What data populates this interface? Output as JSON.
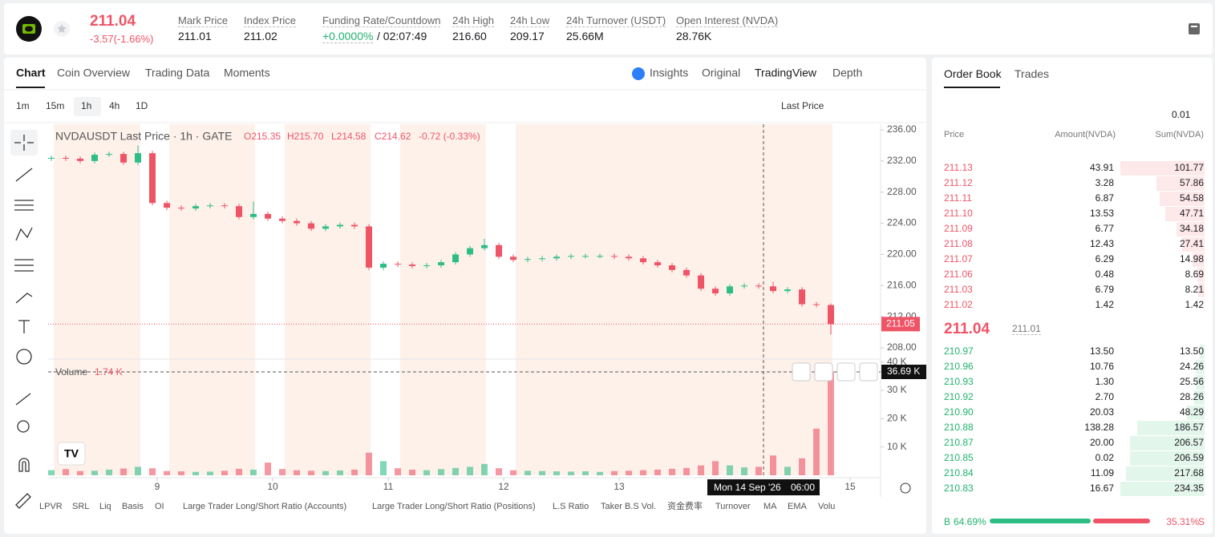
{
  "header": {
    "price": "211.04",
    "change": "-3.57(-1.66%)",
    "stats": [
      {
        "label": "Mark Price",
        "value": "211.01"
      },
      {
        "label": "Index Price",
        "value": "211.02"
      },
      {
        "label": "Funding Rate/Countdown",
        "value": "+0.0000%",
        "extra": "/ 02:07:49"
      },
      {
        "label": "24h High",
        "value": "216.60"
      },
      {
        "label": "24h Low",
        "value": "209.17"
      },
      {
        "label": "24h Turnover (USDT)",
        "value": "25.66M"
      },
      {
        "label": "Open Interest (NVDA)",
        "value": "28.76K"
      }
    ]
  },
  "chart_tabs": [
    "Chart",
    "Coin Overview",
    "Trading Data",
    "Moments"
  ],
  "view_tabs": [
    "Insights",
    "Original",
    "TradingView",
    "Depth"
  ],
  "intervals": [
    "1m",
    "15m",
    "1h",
    "4h",
    "1D"
  ],
  "price_source": "Last Price",
  "chart_data": {
    "type": "candlestick",
    "title": "NVDAUSDT Last Price · 1h · GATE",
    "ohlc_labels": [
      "O215.35",
      "H215.70",
      "L214.58",
      "C214.62"
    ],
    "change_label": "-0.72 (-0.33%)",
    "volume_title": "Volume",
    "volume_value": "1.74 K",
    "last_price_label": "211.05",
    "volume_cursor_label": "36.69 K",
    "cursor_date": "Mon 14 Sep '26",
    "cursor_time": "06:00",
    "x": [
      -22,
      -19,
      -16,
      -13,
      -10,
      -7,
      -4,
      -1,
      2,
      5,
      8,
      11,
      14,
      17,
      20,
      23,
      26,
      29,
      32,
      35,
      38,
      41,
      44,
      47,
      50,
      53,
      56,
      59,
      62,
      65,
      68,
      71,
      74,
      77,
      80,
      83,
      86,
      89,
      92,
      95,
      98,
      101,
      104,
      107,
      110,
      113,
      116,
      119,
      122,
      125,
      128,
      131,
      134,
      137,
      140
    ],
    "open": [
      232.3,
      232.4,
      232.3,
      232.0,
      232.8,
      232.9,
      231.8,
      233.0,
      226.6,
      226.0,
      225.9,
      226.2,
      226.3,
      226.2,
      224.8,
      225.2,
      224.6,
      224.3,
      224.0,
      223.3,
      223.6,
      223.8,
      223.6,
      218.3,
      218.8,
      218.7,
      218.5,
      218.6,
      219.0,
      220.0,
      220.8,
      221.2,
      219.7,
      219.3,
      219.4,
      219.5,
      219.7,
      219.8,
      219.8,
      219.8,
      219.7,
      219.5,
      219.0,
      218.6,
      218.0,
      217.3,
      215.6,
      215.0,
      215.9,
      216.0,
      215.9,
      215.3,
      215.5,
      213.6,
      213.5
    ],
    "high": [
      232.7,
      232.7,
      232.6,
      233.1,
      233.2,
      233.2,
      234.0,
      233.3,
      226.9,
      226.3,
      226.5,
      226.6,
      226.6,
      226.5,
      226.8,
      225.5,
      224.9,
      224.6,
      224.3,
      223.9,
      224.1,
      224.1,
      223.9,
      219.1,
      219.1,
      219.0,
      218.9,
      219.3,
      220.3,
      221.1,
      222.0,
      221.5,
      220.0,
      219.7,
      219.8,
      220.0,
      220.1,
      220.1,
      220.1,
      220.1,
      220.0,
      219.8,
      219.3,
      218.9,
      218.3,
      217.6,
      215.9,
      216.2,
      216.3,
      216.3,
      216.5,
      215.8,
      215.8,
      213.9,
      213.7
    ],
    "low": [
      232.0,
      232.0,
      231.7,
      231.7,
      232.5,
      231.5,
      231.5,
      226.3,
      225.7,
      225.6,
      225.6,
      225.9,
      225.9,
      224.5,
      224.5,
      224.3,
      224.0,
      223.7,
      223.0,
      223.0,
      223.3,
      223.3,
      218.0,
      218.0,
      218.4,
      218.2,
      218.2,
      218.3,
      218.7,
      219.7,
      220.5,
      219.4,
      219.0,
      219.0,
      219.1,
      219.2,
      219.4,
      219.5,
      219.5,
      219.4,
      219.2,
      218.7,
      218.3,
      217.7,
      217.0,
      215.3,
      214.7,
      214.7,
      215.6,
      215.6,
      215.0,
      215.0,
      213.3,
      213.2,
      209.7
    ],
    "close": [
      232.4,
      232.3,
      232.0,
      232.8,
      232.9,
      231.8,
      233.0,
      226.6,
      226.0,
      225.9,
      226.2,
      226.3,
      226.2,
      224.8,
      225.2,
      224.6,
      224.3,
      224.0,
      223.3,
      223.6,
      223.8,
      223.6,
      218.3,
      218.8,
      218.7,
      218.5,
      218.6,
      219.0,
      220.0,
      220.8,
      221.2,
      219.7,
      219.3,
      219.4,
      219.5,
      219.7,
      219.8,
      219.8,
      219.8,
      219.7,
      219.5,
      219.0,
      218.6,
      218.0,
      217.3,
      215.6,
      215.0,
      215.9,
      216.0,
      215.9,
      215.3,
      215.5,
      213.6,
      213.5,
      211.05
    ],
    "volume": [
      1800,
      2200,
      1500,
      1600,
      2000,
      2400,
      3000,
      2500,
      1500,
      1400,
      1200,
      1300,
      1600,
      2300,
      2000,
      4500,
      2200,
      1800,
      1600,
      1500,
      1700,
      2000,
      8000,
      5000,
      2500,
      2000,
      1800,
      2200,
      2600,
      3000,
      4000,
      2500,
      1800,
      1600,
      1500,
      1400,
      1300,
      1400,
      1200,
      1500,
      1600,
      1800,
      2000,
      2300,
      2600,
      3500,
      5000,
      3500,
      2800,
      3000,
      7000,
      3000,
      6000,
      16500,
      36690
    ],
    "up_color": "#2ebd85",
    "down_color": "#ef5466",
    "xlim": [
      -22.67,
      150.33
    ],
    "xticks": [
      {
        "value": 0,
        "label": "9"
      },
      {
        "value": 24,
        "label": "10"
      },
      {
        "value": 48,
        "label": "11"
      },
      {
        "value": 72,
        "label": "12"
      },
      {
        "value": 96,
        "label": "13"
      },
      {
        "value": 144,
        "label": "15"
      }
    ],
    "ylim": [
      206.56,
      236.72
    ],
    "yticks": [
      {
        "value": 208,
        "label": "208.00"
      },
      {
        "value": 212,
        "label": "212.00"
      },
      {
        "value": 216,
        "label": "216.00"
      },
      {
        "value": 220,
        "label": "220.00"
      },
      {
        "value": 224,
        "label": "224.00"
      },
      {
        "value": 228,
        "label": "228.00"
      },
      {
        "value": 232,
        "label": "232.00"
      },
      {
        "value": 236,
        "label": "236.00"
      }
    ],
    "volume_ylim": [
      0,
      40500
    ],
    "volume_yticks": [
      {
        "value": 10000,
        "label": "10 K"
      },
      {
        "value": 20000,
        "label": "20 K"
      },
      {
        "value": 30000,
        "label": "30 K"
      },
      {
        "value": 40000,
        "label": "40 K"
      }
    ]
  },
  "indicators": [
    "LPVR",
    "SRL",
    "Liq",
    "Basis",
    "OI",
    "Large Trader Long/Short Ratio (Accounts)",
    "Large Trader Long/Short Ratio (Positions)",
    "L.S Ratio",
    "Taker B.S Vol.",
    "资金费率",
    "Turnover",
    "MA",
    "EMA",
    "Volu"
  ],
  "order_book": {
    "tabs": [
      "Order Book",
      "Trades"
    ],
    "tick_size": "0.01",
    "columns": [
      "Price",
      "Amount(NVDA)",
      "Sum(NVDA)"
    ],
    "asks": [
      [
        "211.13",
        "43.91",
        "101.77"
      ],
      [
        "211.12",
        "3.28",
        "57.86"
      ],
      [
        "211.11",
        "6.87",
        "54.58"
      ],
      [
        "211.10",
        "13.53",
        "47.71"
      ],
      [
        "211.09",
        "6.77",
        "34.18"
      ],
      [
        "211.08",
        "12.43",
        "27.41"
      ],
      [
        "211.07",
        "6.29",
        "14.98"
      ],
      [
        "211.06",
        "0.48",
        "8.69"
      ],
      [
        "211.03",
        "6.79",
        "8.21"
      ],
      [
        "211.02",
        "1.42",
        "1.42"
      ]
    ],
    "last_price": "211.04",
    "mark_price": "211.01",
    "bids": [
      [
        "210.97",
        "13.50",
        "13.50"
      ],
      [
        "210.96",
        "10.76",
        "24.26"
      ],
      [
        "210.93",
        "1.30",
        "25.56"
      ],
      [
        "210.92",
        "2.70",
        "28.26"
      ],
      [
        "210.90",
        "20.03",
        "48.29"
      ],
      [
        "210.88",
        "138.28",
        "186.57"
      ],
      [
        "210.87",
        "20.00",
        "206.57"
      ],
      [
        "210.85",
        "0.02",
        "206.59"
      ],
      [
        "210.84",
        "11.09",
        "217.68"
      ],
      [
        "210.83",
        "16.67",
        "234.35"
      ]
    ],
    "buy_label": "B",
    "buy_ratio": "64.69%",
    "sell_ratio": "35.31%",
    "sell_label": "S"
  }
}
